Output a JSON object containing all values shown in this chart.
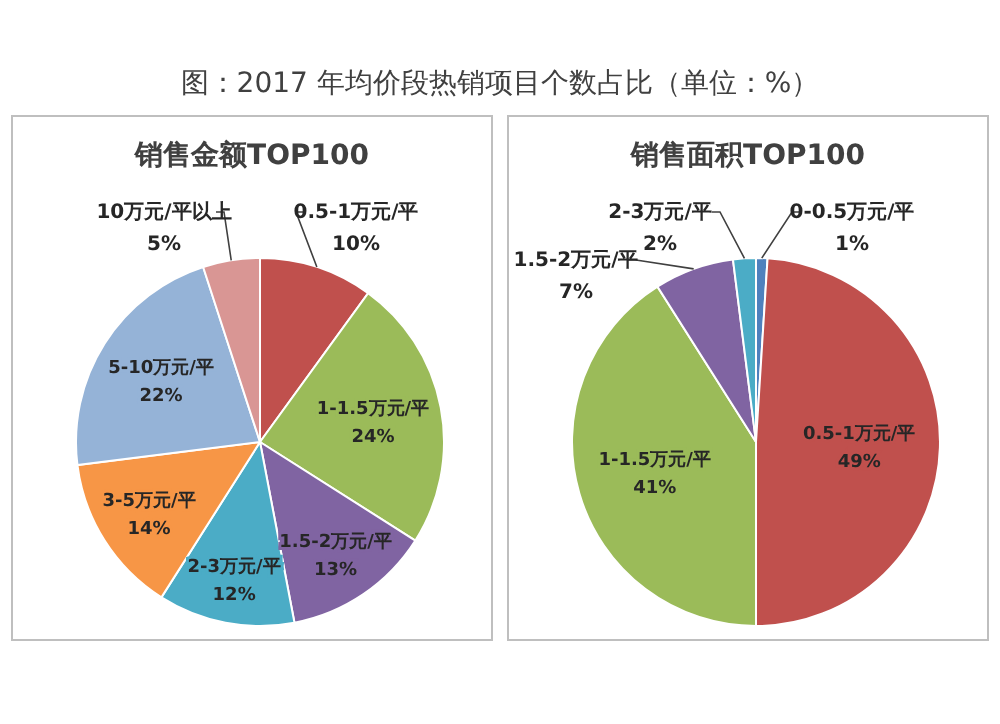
{
  "chart_data": [
    {
      "type": "pie",
      "title": "图：2017 年均价段热销项目个数占比（单位：%）",
      "subtitle": "销售金额TOP100",
      "categories": [
        "0.5-1万元/平",
        "1-1.5万元/平",
        "1.5-2万元/平",
        "2-3万元/平",
        "3-5万元/平",
        "5-10万元/平",
        "10万元/平以上"
      ],
      "values": [
        10,
        24,
        13,
        12,
        14,
        22,
        5
      ],
      "colors": [
        "#c0504d",
        "#9bbb59",
        "#8064a2",
        "#4bacc6",
        "#f79646",
        "#95b3d7",
        "#d99694"
      ],
      "value_labels": [
        "10%",
        "24%",
        "13%",
        "12%",
        "14%",
        "22%",
        "5%"
      ]
    },
    {
      "type": "pie",
      "subtitle": "销售面积TOP100",
      "categories": [
        "0-0.5万元/平",
        "0.5-1万元/平",
        "1-1.5万元/平",
        "1.5-2万元/平",
        "2-3万元/平"
      ],
      "values": [
        1,
        49,
        41,
        7,
        2
      ],
      "colors": [
        "#4f81bd",
        "#c0504d",
        "#9bbb59",
        "#8064a2",
        "#4bacc6"
      ],
      "value_labels": [
        "1%",
        "49%",
        "41%",
        "7%",
        "2%"
      ]
    }
  ]
}
